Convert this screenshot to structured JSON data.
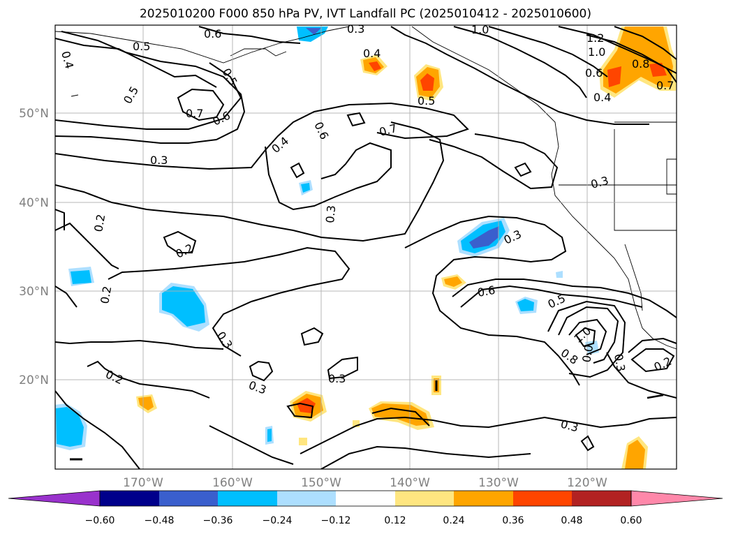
{
  "title": "2025010200 F000 850 hPa PV, IVT Landfall PC (2025010412 - 2025010600)",
  "lon_labels": [
    "170°W",
    "160°W",
    "150°W",
    "140°W",
    "130°W",
    "120°W"
  ],
  "lat_labels": [
    "50°N",
    "40°N",
    "30°N",
    "20°N"
  ],
  "colorbar": {
    "ticks": [
      "−0.60",
      "−0.48",
      "−0.36",
      "−0.24",
      "−0.12",
      "0.12",
      "0.24",
      "0.36",
      "0.48",
      "0.60"
    ],
    "colors": [
      "#9932CC",
      "#00008B",
      "#3A5FCD",
      "#00BFFF",
      "#ADDFFF",
      "#FFFFFF",
      "#FFE680",
      "#FFA500",
      "#FF4500",
      "#B22222",
      "#FF88AA"
    ]
  },
  "contour_labels": [
    "0.4",
    "0.5",
    "0.6",
    "0.3",
    "1.0",
    "1.2",
    "1.0",
    "0.4",
    "0.8",
    "0.7",
    "0.5",
    "0.5",
    "0.6",
    "0.5",
    "0.4",
    "0.7",
    "0.6",
    "0.7",
    "0.6",
    "0.4",
    "0.3",
    "0.3",
    "0.3",
    "0.3",
    "0.2",
    "0.2",
    "0.2",
    "0.3",
    "0.3",
    "0.6",
    "0.5",
    "1.0",
    "0.8",
    "0.0",
    "0.3",
    "0.2",
    "0.2",
    "0.3",
    "0.3",
    "0.2"
  ],
  "map_style": {
    "land_color": "#ffffff",
    "contour_color": "#000000",
    "grid_color": "#b0b0b0"
  }
}
